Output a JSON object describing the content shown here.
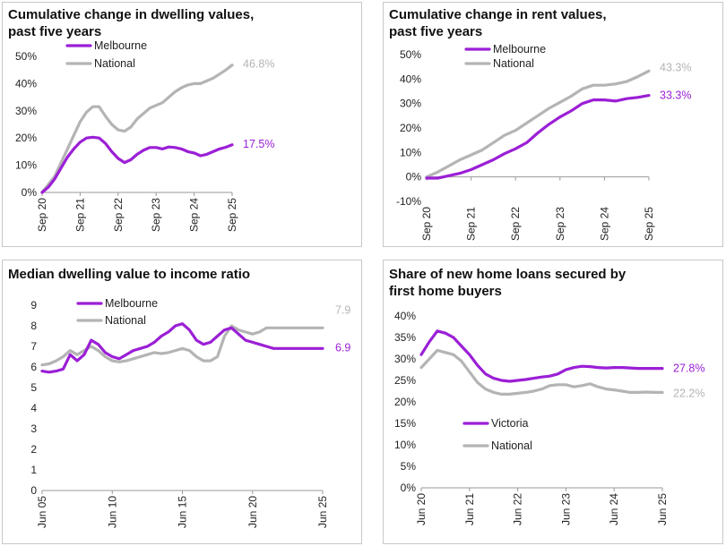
{
  "colors": {
    "primary": "#9b1fd6",
    "national": "#b4b4b4",
    "axis": "#999999"
  },
  "chart_data": [
    {
      "id": "dwelling",
      "type": "line",
      "title": [
        "Cumulative change in dwelling values,",
        "past five years"
      ],
      "x_ticks": [
        "Sep 20",
        "Sep 21",
        "Sep 22",
        "Sep 23",
        "Sep 24",
        "Sep 25"
      ],
      "x_range": [
        0,
        60
      ],
      "ylim": [
        0,
        50
      ],
      "y_ticks": [
        0,
        10,
        20,
        30,
        40,
        50
      ],
      "y_tick_labels": [
        "0%",
        "10%",
        "20%",
        "30%",
        "40%",
        "50%"
      ],
      "legend": [
        "Melbourne",
        "National"
      ],
      "series": [
        {
          "name": "Melbourne",
          "color": "primary",
          "end_label": "17.5%",
          "x": [
            0,
            2,
            4,
            6,
            8,
            10,
            12,
            14,
            16,
            18,
            20,
            22,
            24,
            26,
            28,
            30,
            32,
            34,
            36,
            38,
            40,
            42,
            44,
            46,
            48,
            50,
            52,
            54,
            56,
            58,
            60
          ],
          "values": [
            0,
            2,
            5,
            9,
            13,
            16,
            18.5,
            20,
            20.3,
            20,
            18,
            15,
            12.5,
            11,
            12,
            14,
            15.5,
            16.5,
            16.5,
            16,
            16.7,
            16.5,
            16,
            15,
            14.5,
            13.5,
            14,
            15,
            16,
            16.6,
            17.5
          ]
        },
        {
          "name": "National",
          "color": "national",
          "end_label": "46.8%",
          "x": [
            0,
            2,
            4,
            6,
            8,
            10,
            12,
            14,
            16,
            18,
            20,
            22,
            24,
            26,
            28,
            30,
            32,
            34,
            36,
            38,
            40,
            42,
            44,
            46,
            48,
            50,
            52,
            54,
            56,
            58,
            60
          ],
          "values": [
            0,
            3,
            6,
            11,
            16,
            21,
            26,
            29.5,
            31.5,
            31.5,
            28,
            25,
            23,
            22.5,
            24,
            27,
            29,
            31,
            32,
            33,
            35,
            37,
            38.5,
            39.5,
            40,
            40,
            41,
            42,
            43.5,
            45,
            46.8
          ]
        }
      ]
    },
    {
      "id": "rent",
      "type": "line",
      "title": [
        "Cumulative change in rent values,",
        "past five years"
      ],
      "x_ticks": [
        "Sep 20",
        "Sep 21",
        "Sep 22",
        "Sep 23",
        "Sep 24",
        "Sep 25"
      ],
      "x_range": [
        0,
        60
      ],
      "ylim": [
        -10,
        50
      ],
      "y_ticks": [
        -10,
        0,
        10,
        20,
        30,
        40,
        50
      ],
      "y_tick_labels": [
        "-10%",
        "0%",
        "10%",
        "20%",
        "30%",
        "40%",
        "50%"
      ],
      "legend": [
        "Melbourne",
        "National"
      ],
      "series": [
        {
          "name": "Melbourne",
          "color": "primary",
          "end_label": "33.3%",
          "x": [
            0,
            3,
            6,
            9,
            12,
            15,
            18,
            21,
            24,
            27,
            30,
            33,
            36,
            39,
            42,
            45,
            48,
            51,
            54,
            57,
            60
          ],
          "values": [
            -0.5,
            -0.5,
            0.5,
            1.5,
            3,
            5,
            7,
            9.5,
            11.5,
            14,
            18,
            21.5,
            24.5,
            27,
            30,
            31.5,
            31.5,
            31,
            32,
            32.5,
            33.3
          ]
        },
        {
          "name": "National",
          "color": "national",
          "end_label": "43.3%",
          "x": [
            0,
            3,
            6,
            9,
            12,
            15,
            18,
            21,
            24,
            27,
            30,
            33,
            36,
            39,
            42,
            45,
            48,
            51,
            54,
            57,
            60
          ],
          "values": [
            0,
            2,
            4.5,
            7,
            9,
            11,
            14,
            17,
            19,
            22,
            25,
            28,
            30.5,
            33,
            36,
            37.5,
            37.5,
            38,
            39,
            41,
            43.3
          ]
        }
      ]
    },
    {
      "id": "ratio",
      "type": "line",
      "title": [
        "Median dwelling value to income ratio"
      ],
      "x_ticks": [
        "Jun 05",
        "Jun 10",
        "Jun 15",
        "Jun 20",
        "Jun 25"
      ],
      "x_range": [
        0,
        80
      ],
      "ylim": [
        0,
        9
      ],
      "y_ticks": [
        0,
        1,
        2,
        3,
        4,
        5,
        6,
        7,
        8,
        9
      ],
      "y_tick_labels": [
        "0",
        "1",
        "2",
        "3",
        "4",
        "5",
        "6",
        "7",
        "8",
        "9"
      ],
      "legend": [
        "Melbourne",
        "National"
      ],
      "series": [
        {
          "name": "Melbourne",
          "color": "primary",
          "end_label": "6.9",
          "x": [
            0,
            2,
            4,
            6,
            8,
            10,
            12,
            14,
            16,
            18,
            20,
            22,
            24,
            26,
            28,
            30,
            32,
            34,
            36,
            38,
            40,
            42,
            44,
            46,
            48,
            50,
            52,
            54,
            56,
            58,
            60,
            62,
            64,
            66,
            68,
            70,
            72,
            74,
            76,
            78,
            80
          ],
          "values": [
            5.8,
            5.75,
            5.8,
            5.9,
            6.6,
            6.3,
            6.6,
            7.3,
            7.1,
            6.7,
            6.5,
            6.4,
            6.6,
            6.8,
            6.9,
            7.0,
            7.2,
            7.5,
            7.7,
            8.0,
            8.1,
            7.8,
            7.3,
            7.1,
            7.2,
            7.5,
            7.8,
            7.9,
            7.6,
            7.3,
            7.2,
            7.1,
            7.0,
            6.9,
            6.9,
            6.9,
            6.9,
            6.9,
            6.9,
            6.9,
            6.9
          ]
        },
        {
          "name": "National",
          "color": "national",
          "end_label": "7.9",
          "x": [
            0,
            2,
            4,
            6,
            8,
            10,
            12,
            14,
            16,
            18,
            20,
            22,
            24,
            26,
            28,
            30,
            32,
            34,
            36,
            38,
            40,
            42,
            44,
            46,
            48,
            50,
            52,
            54,
            56,
            58,
            60,
            62,
            64,
            66,
            68,
            70,
            72,
            74,
            76,
            78,
            80
          ],
          "values": [
            6.1,
            6.15,
            6.3,
            6.5,
            6.8,
            6.6,
            6.8,
            7.0,
            6.8,
            6.5,
            6.3,
            6.25,
            6.3,
            6.4,
            6.5,
            6.6,
            6.7,
            6.65,
            6.7,
            6.8,
            6.9,
            6.8,
            6.5,
            6.3,
            6.3,
            6.5,
            7.5,
            8.0,
            7.8,
            7.7,
            7.6,
            7.7,
            7.9,
            7.9,
            7.9,
            7.9,
            7.9,
            7.9,
            7.9,
            7.9,
            7.9
          ]
        }
      ]
    },
    {
      "id": "fhb",
      "type": "line",
      "title": [
        "Share of new home loans secured by",
        "first home buyers"
      ],
      "x_ticks": [
        "Jun 20",
        "Jun 21",
        "Jun 22",
        "Jun 23",
        "Jun 24",
        "Jun 25"
      ],
      "x_range": [
        0,
        60
      ],
      "ylim": [
        0,
        40
      ],
      "y_ticks": [
        0,
        5,
        10,
        15,
        20,
        25,
        30,
        35,
        40
      ],
      "y_tick_labels": [
        "0%",
        "5%",
        "10%",
        "15%",
        "20%",
        "25%",
        "30%",
        "35%",
        "40%"
      ],
      "legend": [
        "Victoria",
        "National"
      ],
      "series": [
        {
          "name": "Victoria",
          "color": "primary",
          "end_label": "27.8%",
          "x": [
            0,
            2,
            4,
            6,
            8,
            10,
            12,
            14,
            16,
            18,
            20,
            22,
            24,
            26,
            28,
            30,
            32,
            34,
            36,
            38,
            40,
            42,
            44,
            46,
            48,
            50,
            52,
            54,
            56,
            58,
            60
          ],
          "values": [
            31,
            34,
            36.5,
            36,
            35,
            33,
            31,
            28.5,
            26.5,
            25.5,
            25,
            24.8,
            25,
            25.2,
            25.5,
            25.8,
            26,
            26.5,
            27.5,
            28,
            28.3,
            28.2,
            28,
            27.9,
            28,
            28,
            27.9,
            27.8,
            27.8,
            27.8,
            27.8
          ]
        },
        {
          "name": "National",
          "color": "national",
          "end_label": "22.2%",
          "x": [
            0,
            2,
            4,
            6,
            8,
            10,
            12,
            14,
            16,
            18,
            20,
            22,
            24,
            26,
            28,
            30,
            32,
            34,
            36,
            38,
            40,
            42,
            44,
            46,
            48,
            50,
            52,
            54,
            56,
            58,
            60
          ],
          "values": [
            28,
            30,
            32,
            31.5,
            31,
            29.5,
            27,
            24.5,
            23,
            22.2,
            21.8,
            21.8,
            22,
            22.2,
            22.5,
            23,
            23.8,
            24,
            24,
            23.5,
            23.8,
            24.2,
            23.5,
            23,
            22.8,
            22.5,
            22.2,
            22.2,
            22.3,
            22.2,
            22.2
          ]
        }
      ]
    }
  ]
}
